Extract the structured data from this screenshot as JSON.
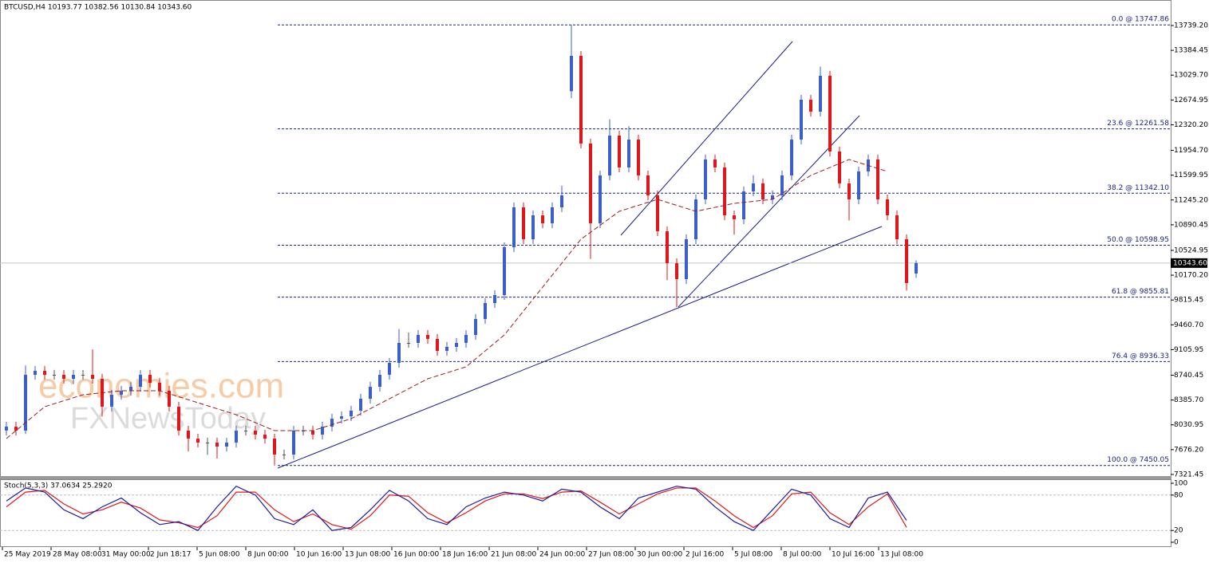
{
  "chart_data": {
    "type": "candlestick",
    "title": "BTCUSD,H4  10193.77 10382.56 10130.84 10343.60",
    "watermark": [
      "economies.com",
      "FXNewsToday"
    ],
    "candles": {
      "open": [
        7950,
        8005,
        7948,
        8746,
        8803,
        8746,
        8746,
        8689,
        8746,
        8746,
        8689,
        8290,
        8461,
        8518,
        8575,
        8746,
        8632,
        8518,
        8290,
        7948,
        7834,
        7777,
        7777,
        7720,
        7777,
        7948,
        7948,
        7891,
        7834,
        7606,
        7606,
        7948,
        7948,
        7891,
        8005,
        8119,
        8153,
        8233,
        8404,
        8575,
        8746,
        8917,
        9202,
        9202,
        9316,
        9259,
        9088,
        9145,
        9202,
        9316,
        9544,
        9772,
        9886,
        10570,
        11140,
        10684,
        11026,
        10912,
        11140,
        12800,
        13306,
        12052,
        10912,
        11596,
        12166,
        11710,
        12109,
        11596,
        11311,
        10798,
        10342,
        10114,
        10684,
        11254,
        11824,
        11710,
        11026,
        10969,
        11368,
        11482,
        11254,
        11311,
        11596,
        12109,
        12679,
        12508,
        13021,
        11938,
        11482,
        11254,
        11653,
        11824,
        11254,
        11026,
        10684,
        10193.77
      ],
      "high": [
        8075,
        8075,
        8880,
        8873,
        8873,
        8816,
        8816,
        8816,
        8816,
        9110,
        8759,
        8531,
        8588,
        8645,
        8816,
        8816,
        8702,
        8588,
        8360,
        8018,
        7904,
        7847,
        7847,
        7847,
        8018,
        8018,
        8018,
        7961,
        7904,
        7676,
        8018,
        8018,
        8018,
        8075,
        8189,
        8223,
        8303,
        8474,
        8645,
        8816,
        8987,
        9400,
        9350,
        9386,
        9386,
        9329,
        9215,
        9272,
        9386,
        9614,
        9842,
        9956,
        10640,
        11210,
        11210,
        11096,
        11096,
        11210,
        11450,
        13748,
        13376,
        12122,
        11666,
        12400,
        12236,
        12300,
        12179,
        11666,
        11381,
        10868,
        10412,
        10754,
        11324,
        11894,
        11894,
        11780,
        11096,
        11438,
        11600,
        11552,
        11381,
        11666,
        12179,
        12749,
        12749,
        13150,
        13091,
        12008,
        11552,
        11723,
        11894,
        11894,
        11324,
        11096,
        10754,
        10382.56
      ],
      "low": [
        7880,
        7878,
        7900,
        8676,
        8676,
        8676,
        8619,
        8619,
        8676,
        8619,
        8150,
        8220,
        8391,
        8448,
        8505,
        8562,
        8448,
        8220,
        7878,
        7650,
        7707,
        7600,
        7550,
        7650,
        7707,
        7878,
        7821,
        7764,
        7450,
        7536,
        7536,
        7878,
        7821,
        7821,
        7935,
        8049,
        8083,
        8163,
        8334,
        8505,
        8676,
        8847,
        9132,
        9132,
        9189,
        9018,
        9018,
        9075,
        9132,
        9246,
        9474,
        9702,
        9816,
        10500,
        10614,
        10614,
        10842,
        10842,
        11070,
        12700,
        11982,
        10400,
        10842,
        11526,
        11640,
        11640,
        11526,
        11241,
        10728,
        10100,
        9715,
        10044,
        10614,
        11184,
        11640,
        10956,
        10750,
        10899,
        11298,
        11184,
        11184,
        11241,
        11526,
        12039,
        12438,
        12438,
        11868,
        11412,
        10950,
        11184,
        11583,
        11184,
        10956,
        10614,
        9950,
        10130.84
      ],
      "close": [
        8005,
        7948,
        8746,
        8803,
        8746,
        8746,
        8689,
        8746,
        8746,
        8689,
        8290,
        8461,
        8518,
        8575,
        8746,
        8632,
        8518,
        8290,
        7948,
        7834,
        7777,
        7777,
        7720,
        7777,
        7948,
        7948,
        7891,
        7834,
        7606,
        7606,
        7948,
        7948,
        7891,
        8005,
        8119,
        8153,
        8233,
        8404,
        8575,
        8746,
        8917,
        9202,
        9202,
        9316,
        9259,
        9088,
        9145,
        9202,
        9316,
        9544,
        9772,
        9886,
        10570,
        11140,
        10684,
        11026,
        10912,
        11140,
        11311,
        13306,
        12052,
        10912,
        11596,
        12166,
        11710,
        12109,
        11596,
        11311,
        10798,
        10342,
        10114,
        10684,
        11254,
        11824,
        11710,
        11026,
        10969,
        11368,
        11482,
        11254,
        11311,
        11596,
        12109,
        12679,
        12508,
        13021,
        11938,
        11482,
        11254,
        11653,
        11824,
        11254,
        11026,
        10684,
        10057,
        10343.6
      ]
    },
    "bull_color": "#3a5fcd",
    "bear_color": "#e0161b",
    "ma_values": [
      7834,
      8290,
      8461,
      8518,
      8518,
      8347,
      8176,
      7948,
      7948,
      8119,
      8404,
      8689,
      8860,
      9316,
      10000,
      10684,
      11083,
      11254,
      11083,
      11197,
      11254,
      11596,
      11824,
      11653
    ],
    "ma_color": "#9b1c1c",
    "ylim": [
      7287,
      14104
    ],
    "yticks": [
      {
        "value": 13739.2,
        "label": "13739.20"
      },
      {
        "value": 13384.45,
        "label": "13384.45"
      },
      {
        "value": 13029.7,
        "label": "13029.70"
      },
      {
        "value": 12674.95,
        "label": "12674.95"
      },
      {
        "value": 12320.2,
        "label": "12320.20"
      },
      {
        "value": 11954.7,
        "label": "11954.70"
      },
      {
        "value": 11599.95,
        "label": "11599.95"
      },
      {
        "value": 11245.2,
        "label": "11245.20"
      },
      {
        "value": 10890.45,
        "label": "10890.45"
      },
      {
        "value": 10524.95,
        "label": "10524.95"
      },
      {
        "value": 10170.2,
        "label": "10170.20"
      },
      {
        "value": 9815.45,
        "label": "9815.45"
      },
      {
        "value": 9460.7,
        "label": "9460.70"
      },
      {
        "value": 9105.95,
        "label": "9105.95"
      },
      {
        "value": 8740.45,
        "label": "8740.45"
      },
      {
        "value": 8385.7,
        "label": "8385.70"
      },
      {
        "value": 8030.95,
        "label": "8030.95"
      },
      {
        "value": 7676.2,
        "label": "7676.20"
      },
      {
        "value": 7321.45,
        "label": "7321.45"
      }
    ],
    "current_price": {
      "value": 10343.6,
      "label": "10343.60"
    },
    "fib_levels": [
      {
        "value": 13747.86,
        "label": "0.0 @ 13747.86"
      },
      {
        "value": 12261.58,
        "label": "23.6 @ 12261.58"
      },
      {
        "value": 11342.1,
        "label": "38.2 @ 11342.10"
      },
      {
        "value": 10598.95,
        "label": "50.0 @ 10598.95"
      },
      {
        "value": 9855.81,
        "label": "61.8 @ 9855.81"
      },
      {
        "value": 8936.33,
        "label": "76.4 @ 8936.33"
      },
      {
        "value": 7450.05,
        "label": "100.0 @ 7450.05"
      }
    ],
    "stoch_label": "Stoch(5,3,3) 37.0634 25.2920",
    "stoch_main": [
      70,
      92,
      85,
      55,
      40,
      60,
      75,
      50,
      30,
      35,
      20,
      60,
      95,
      80,
      40,
      30,
      55,
      20,
      25,
      55,
      88,
      70,
      40,
      30,
      60,
      75,
      85,
      80,
      70,
      90,
      85,
      60,
      40,
      75,
      85,
      95,
      90,
      60,
      35,
      20,
      55,
      90,
      80,
      40,
      25,
      75,
      85,
      37.0634
    ],
    "stoch_signal": [
      60,
      85,
      88,
      65,
      48,
      55,
      68,
      58,
      38,
      33,
      25,
      45,
      85,
      85,
      55,
      35,
      48,
      30,
      22,
      45,
      80,
      78,
      50,
      33,
      50,
      70,
      82,
      82,
      74,
      85,
      87,
      68,
      48,
      65,
      82,
      92,
      92,
      70,
      45,
      25,
      45,
      82,
      85,
      50,
      30,
      60,
      82,
      25.292
    ],
    "stoch_main_color": "#1a1aa0",
    "stoch_signal_color": "#e0161b",
    "stoch_ylim": [
      0,
      100
    ],
    "stoch_yticks": [
      0,
      20,
      80,
      100
    ],
    "xtick_labels": [
      "25 May 2019",
      "28 May 08:00",
      "31 May 00:00",
      "2 Jun 18:17",
      "5 Jun 08:00",
      "8 Jun 00:00",
      "10 Jun 16:00",
      "13 Jun 08:00",
      "16 Jun 00:00",
      "18 Jun 16:00",
      "21 Jun 08:00",
      "24 Jun 00:00",
      "27 Jun 08:00",
      "30 Jun 00:00",
      "2 Jul 16:00",
      "5 Jul 08:00",
      "8 Jul 00:00",
      "10 Jul 16:00",
      "13 Jul 08:00"
    ]
  }
}
